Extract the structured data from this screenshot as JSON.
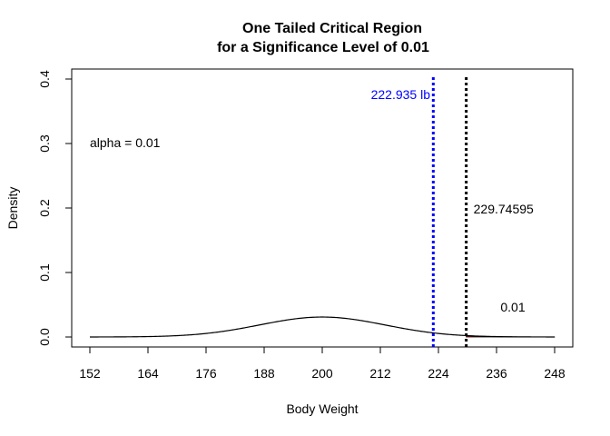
{
  "chart_data": {
    "type": "line",
    "title_line1": "One Tailed Critical Region",
    "title_line2": "for a Significance Level of 0.01",
    "xlabel": "Body Weight",
    "ylabel": "Density",
    "xlim": [
      152,
      248
    ],
    "ylim": [
      0,
      0.4
    ],
    "x_ticks": [
      152,
      164,
      176,
      188,
      200,
      212,
      224,
      236,
      248
    ],
    "y_ticks": [
      0.0,
      0.1,
      0.2,
      0.3,
      0.4
    ],
    "y_tick_labels": [
      "0.0",
      "0.1",
      "0.2",
      "0.3",
      "0.4"
    ],
    "distribution": {
      "kind": "normal",
      "mean": 200,
      "sd": 12.8927,
      "x_range": [
        152,
        248
      ]
    },
    "critical_value": 229.74595,
    "critical_label": "229.74595",
    "observed_value": 222.935,
    "observed_label": "222.935 lb",
    "alpha_label": "alpha = 0.01",
    "region_label": "0.01",
    "colors": {
      "curve": "#000000",
      "observed_line": "#0000ff",
      "critical_line": "#000000",
      "region_fill": "#ff0000",
      "observed_text": "#0000ff"
    },
    "grid": false,
    "legend": "none"
  }
}
